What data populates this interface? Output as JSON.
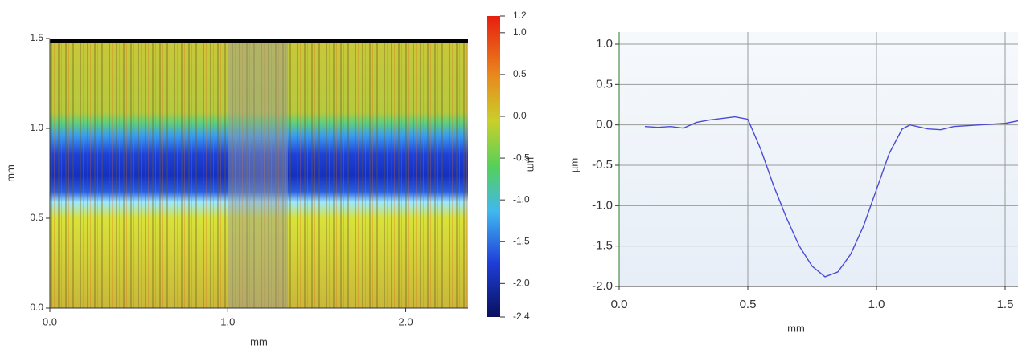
{
  "chart_data": [
    {
      "type": "image",
      "xlabel": "mm",
      "ylabel": "mm",
      "xlim": [
        0,
        2.35
      ],
      "xticks": [
        {
          "value": 0,
          "label": "0.0"
        },
        {
          "value": 1,
          "label": "1.0"
        },
        {
          "value": 2,
          "label": "2.0"
        }
      ],
      "ylim": [
        0,
        1.5
      ],
      "yticks": [
        {
          "value": 0,
          "label": "0.0"
        },
        0.5,
        {
          "value": 1,
          "label": "1.0"
        },
        1.5
      ],
      "colorbar": {
        "label": "µm",
        "lim": [
          -2.4,
          1.2
        ],
        "ticks": [
          1.2,
          {
            "value": 1,
            "label": "1.0"
          },
          0.5,
          {
            "value": 0,
            "label": "0.0"
          },
          -0.5,
          {
            "value": -1,
            "label": "-1.0"
          },
          -1.5,
          {
            "value": -2,
            "label": "-2.0"
          },
          -2.4
        ]
      }
    },
    {
      "type": "line",
      "xlabel": "mm",
      "ylabel": "µm",
      "color": "#4b4bd6",
      "grid": true,
      "x": [
        0.1,
        0.15,
        0.2,
        0.25,
        0.3,
        0.35,
        0.4,
        0.45,
        0.5,
        0.55,
        0.6,
        0.65,
        0.7,
        0.75,
        0.8,
        0.85,
        0.9,
        0.95,
        1.0,
        1.05,
        1.1,
        1.13,
        1.2,
        1.25,
        1.3,
        1.4,
        1.5,
        1.55
      ],
      "values": [
        -0.02,
        -0.03,
        -0.02,
        -0.04,
        0.03,
        0.06,
        0.08,
        0.1,
        0.07,
        -0.3,
        -0.75,
        -1.15,
        -1.5,
        -1.75,
        -1.88,
        -1.82,
        -1.6,
        -1.25,
        -0.8,
        -0.35,
        -0.05,
        0.0,
        -0.05,
        -0.06,
        -0.02,
        0.0,
        0.02,
        0.05
      ],
      "xlim": [
        0,
        1.55
      ],
      "xticks": [
        {
          "value": 0,
          "label": "0.0"
        },
        0.5,
        {
          "value": 1,
          "label": "1.0"
        },
        1.5
      ],
      "ylim": [
        -2,
        1
      ],
      "yticks": [
        {
          "value": -2,
          "label": "-2.0"
        },
        -1.5,
        {
          "value": -1,
          "label": "-1.0"
        },
        -0.5,
        {
          "value": 0,
          "label": "0.0"
        },
        0.5,
        {
          "value": 1,
          "label": "1.0"
        }
      ]
    }
  ]
}
